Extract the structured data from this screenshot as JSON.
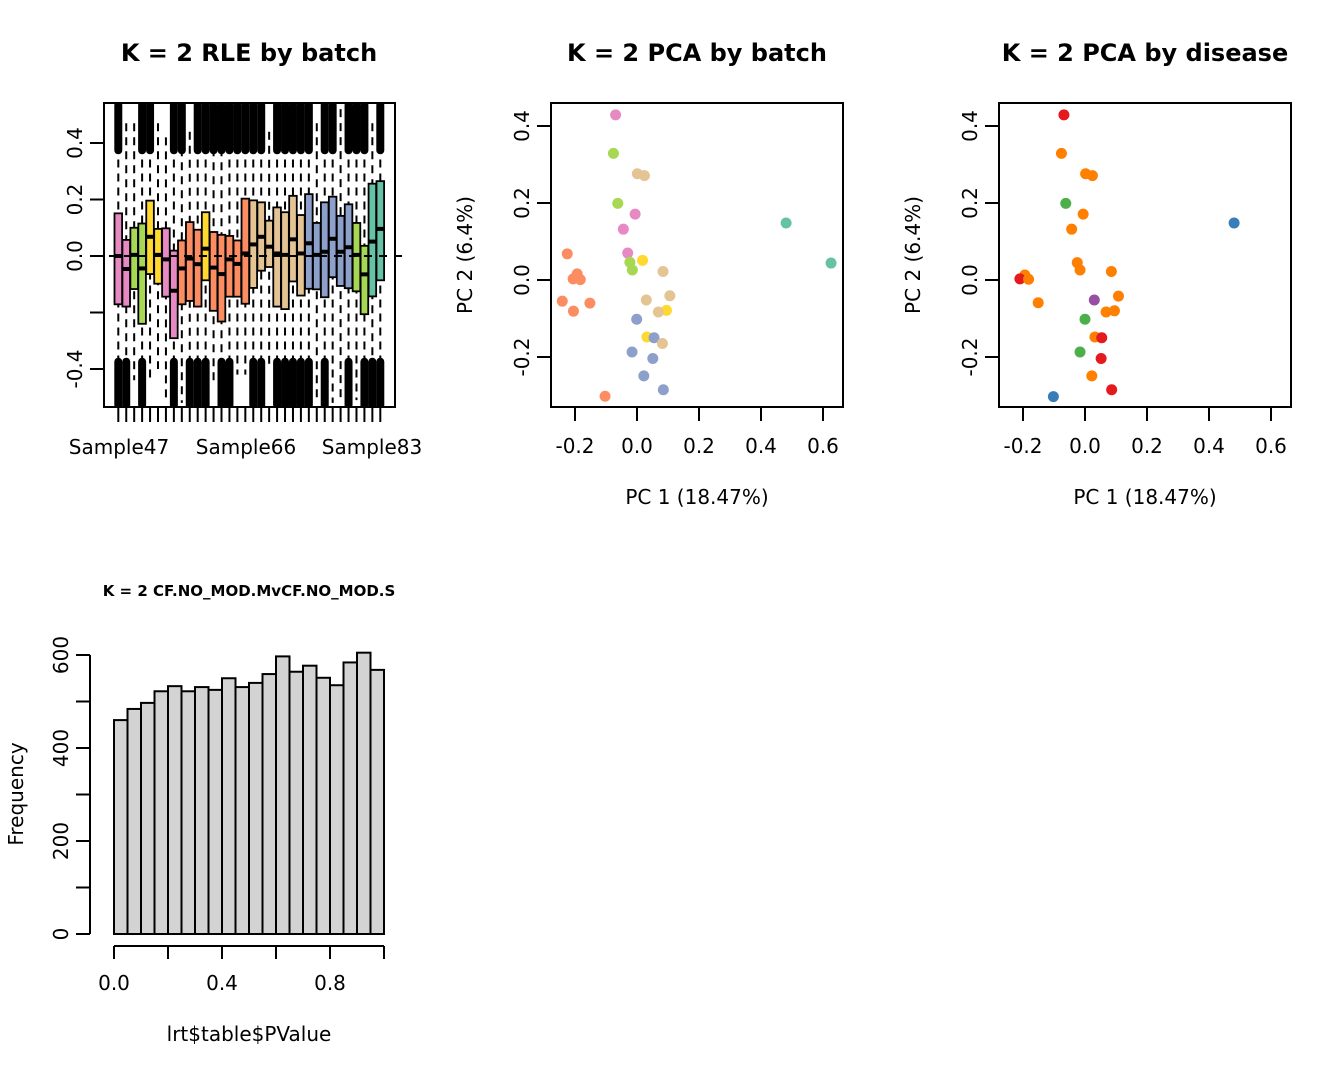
{
  "chart_data": [
    {
      "id": "rle",
      "type": "box",
      "title": "K = 2 RLE by batch",
      "xlabel": "",
      "ylabel": "",
      "ylim": [
        -0.54,
        0.54
      ],
      "yticks": [
        -0.4,
        -0.2,
        0.0,
        0.2,
        0.4
      ],
      "ytick_labels": [
        "-0.4",
        "",
        "0.0",
        "0.2",
        "0.4"
      ],
      "xtick_labels": [
        {
          "index": 1,
          "label": "Sample47"
        },
        {
          "index": 12,
          "label": "Sample66"
        },
        {
          "index": 23,
          "label": "Sample83"
        }
      ],
      "reference_line": 0.0,
      "batch_colors": {
        "pink": "#E78AC3",
        "green": "#A6D854",
        "yellow": "#FFD92F",
        "orange": "#FC8D62",
        "tan": "#E5C494",
        "blue": "#8DA0CB",
        "teal": "#66C2A5"
      },
      "boxes": [
        {
          "batch": "pink",
          "q3": 0.151,
          "median": 0.0,
          "q1": -0.171,
          "outlier_top": 0.54,
          "outlier_bottom": -0.54
        },
        {
          "batch": "pink",
          "q3": 0.057,
          "median": -0.046,
          "q1": -0.179,
          "outlier_top": 0.47,
          "outlier_bottom": -0.53
        },
        {
          "batch": "green",
          "q3": 0.1,
          "median": 0.004,
          "q1": -0.117,
          "outlier_top": 0.47,
          "outlier_bottom": -0.44
        },
        {
          "batch": "green",
          "q3": 0.115,
          "median": -0.044,
          "q1": -0.24,
          "outlier_top": 0.54,
          "outlier_bottom": -0.54
        },
        {
          "batch": "yellow",
          "q3": 0.196,
          "median": 0.068,
          "q1": -0.064,
          "outlier_top": 0.54,
          "outlier_bottom": -0.45
        },
        {
          "batch": "yellow",
          "q3": 0.096,
          "median": 0.004,
          "q1": -0.098,
          "outlier_top": 0.47,
          "outlier_bottom": -0.4
        },
        {
          "batch": "pink",
          "q3": 0.098,
          "median": -0.012,
          "q1": -0.144,
          "outlier_top": 0.42,
          "outlier_bottom": -0.51
        },
        {
          "batch": "pink",
          "q3": 0.019,
          "median": -0.123,
          "q1": -0.291,
          "outlier_top": 0.54,
          "outlier_bottom": -0.54
        },
        {
          "batch": "orange",
          "q3": 0.055,
          "median": -0.044,
          "q1": -0.171,
          "outlier_top": 0.53,
          "outlier_bottom": -0.52
        },
        {
          "batch": "orange",
          "q3": 0.12,
          "median": -0.009,
          "q1": -0.159,
          "outlier_top": 0.44,
          "outlier_bottom": -0.54
        },
        {
          "batch": "orange",
          "q3": 0.093,
          "median": -0.029,
          "q1": -0.179,
          "outlier_top": 0.54,
          "outlier_bottom": -0.54
        },
        {
          "batch": "yellow",
          "q3": 0.155,
          "median": 0.026,
          "q1": -0.086,
          "outlier_top": 0.54,
          "outlier_bottom": -0.54
        },
        {
          "batch": "orange",
          "q3": 0.085,
          "median": -0.041,
          "q1": -0.194,
          "outlier_top": 0.53,
          "outlier_bottom": -0.44
        },
        {
          "batch": "orange",
          "q3": 0.075,
          "median": -0.064,
          "q1": -0.232,
          "outlier_top": 0.53,
          "outlier_bottom": -0.54
        },
        {
          "batch": "orange",
          "q3": 0.071,
          "median": -0.012,
          "q1": -0.144,
          "outlier_top": 0.54,
          "outlier_bottom": -0.54
        },
        {
          "batch": "orange",
          "q3": 0.055,
          "median": -0.028,
          "q1": -0.144,
          "outlier_top": 0.54,
          "outlier_bottom": -0.42
        },
        {
          "batch": "orange",
          "q3": 0.203,
          "median": 0.009,
          "q1": -0.169,
          "outlier_top": 0.54,
          "outlier_bottom": -0.42
        },
        {
          "batch": "tan",
          "q3": 0.197,
          "median": 0.041,
          "q1": -0.113,
          "outlier_top": 0.54,
          "outlier_bottom": -0.54
        },
        {
          "batch": "tan",
          "q3": 0.19,
          "median": 0.068,
          "q1": -0.052,
          "outlier_top": 0.54,
          "outlier_bottom": -0.54
        },
        {
          "batch": "tan",
          "q3": 0.125,
          "median": 0.033,
          "q1": -0.039,
          "outlier_top": 0.44,
          "outlier_bottom": -0.39
        },
        {
          "batch": "tan",
          "q3": 0.172,
          "median": 0.009,
          "q1": -0.179,
          "outlier_top": 0.54,
          "outlier_bottom": -0.54
        },
        {
          "batch": "tan",
          "q3": 0.155,
          "median": 0.004,
          "q1": -0.188,
          "outlier_top": 0.54,
          "outlier_bottom": -0.54
        },
        {
          "batch": "tan",
          "q3": 0.213,
          "median": 0.059,
          "q1": -0.09,
          "outlier_top": 0.54,
          "outlier_bottom": -0.54
        },
        {
          "batch": "tan",
          "q3": 0.145,
          "median": 0.009,
          "q1": -0.14,
          "outlier_top": 0.54,
          "outlier_bottom": -0.54
        },
        {
          "batch": "blue",
          "q3": 0.219,
          "median": 0.045,
          "q1": -0.116,
          "outlier_top": 0.54,
          "outlier_bottom": -0.54
        },
        {
          "batch": "blue",
          "q3": 0.117,
          "median": 0.004,
          "q1": -0.118,
          "outlier_top": 0.47,
          "outlier_bottom": -0.51
        },
        {
          "batch": "blue",
          "q3": 0.19,
          "median": 0.015,
          "q1": -0.146,
          "outlier_top": 0.54,
          "outlier_bottom": -0.54
        },
        {
          "batch": "blue",
          "q3": 0.21,
          "median": 0.061,
          "q1": -0.075,
          "outlier_top": 0.54,
          "outlier_bottom": -0.52
        },
        {
          "batch": "blue",
          "q3": 0.142,
          "median": 0.015,
          "q1": -0.106,
          "outlier_top": 0.52,
          "outlier_bottom": -0.51
        },
        {
          "batch": "blue",
          "q3": 0.183,
          "median": 0.031,
          "q1": -0.114,
          "outlier_top": 0.54,
          "outlier_bottom": -0.54
        },
        {
          "batch": "green",
          "q3": 0.117,
          "median": 0.004,
          "q1": -0.125,
          "outlier_top": 0.54,
          "outlier_bottom": -0.51
        },
        {
          "batch": "green",
          "q3": 0.036,
          "median": -0.065,
          "q1": -0.206,
          "outlier_top": 0.54,
          "outlier_bottom": -0.54
        },
        {
          "batch": "teal",
          "q3": 0.256,
          "median": 0.051,
          "q1": -0.143,
          "outlier_top": 0.47,
          "outlier_bottom": -0.54
        },
        {
          "batch": "teal",
          "q3": 0.265,
          "median": 0.096,
          "q1": -0.086,
          "outlier_top": 0.54,
          "outlier_bottom": -0.54
        }
      ]
    },
    {
      "id": "pca-batch",
      "type": "scatter",
      "title": "K = 2 PCA by batch",
      "xlabel": "PC 1 (18.47%)",
      "ylabel": "PC 2 (6.4%)",
      "xlim": [
        -0.277,
        0.665
      ],
      "ylim": [
        -0.33,
        0.46
      ],
      "xticks": [
        -0.2,
        0.0,
        0.2,
        0.4,
        0.6
      ],
      "xtick_labels": [
        "-0.2",
        "0.0",
        "0.2",
        "0.4",
        "0.6"
      ],
      "yticks": [
        -0.2,
        0.0,
        0.2,
        0.4
      ],
      "ytick_labels": [
        "-0.2",
        "0.0",
        "0.2",
        "0.4"
      ],
      "points": [
        {
          "x": -0.069,
          "y": 0.429,
          "color": "#E78AC3"
        },
        {
          "x": -0.076,
          "y": 0.329,
          "color": "#A6D854"
        },
        {
          "x": 0.001,
          "y": 0.276,
          "color": "#E5C494"
        },
        {
          "x": 0.024,
          "y": 0.271,
          "color": "#E5C494"
        },
        {
          "x": -0.062,
          "y": 0.199,
          "color": "#A6D854"
        },
        {
          "x": -0.006,
          "y": 0.171,
          "color": "#E78AC3"
        },
        {
          "x": -0.044,
          "y": 0.132,
          "color": "#E78AC3"
        },
        {
          "x": -0.225,
          "y": 0.068,
          "color": "#FC8D62"
        },
        {
          "x": -0.03,
          "y": 0.07,
          "color": "#E78AC3"
        },
        {
          "x": 0.018,
          "y": 0.051,
          "color": "#FFD92F"
        },
        {
          "x": -0.023,
          "y": 0.046,
          "color": "#A6D854"
        },
        {
          "x": -0.015,
          "y": 0.026,
          "color": "#A6D854"
        },
        {
          "x": 0.084,
          "y": 0.022,
          "color": "#E5C494"
        },
        {
          "x": -0.193,
          "y": 0.016,
          "color": "#FC8D62"
        },
        {
          "x": -0.206,
          "y": 0.003,
          "color": "#FC8D62"
        },
        {
          "x": -0.183,
          "y": 0.001,
          "color": "#FC8D62"
        },
        {
          "x": 0.106,
          "y": -0.041,
          "color": "#E5C494"
        },
        {
          "x": -0.241,
          "y": -0.055,
          "color": "#FC8D62"
        },
        {
          "x": -0.152,
          "y": -0.06,
          "color": "#FC8D62"
        },
        {
          "x": 0.03,
          "y": -0.052,
          "color": "#E5C494"
        },
        {
          "x": -0.205,
          "y": -0.081,
          "color": "#FC8D62"
        },
        {
          "x": 0.095,
          "y": -0.079,
          "color": "#FFD92F"
        },
        {
          "x": 0.069,
          "y": -0.083,
          "color": "#E5C494"
        },
        {
          "x": -0.001,
          "y": -0.102,
          "color": "#8DA0CB"
        },
        {
          "x": 0.032,
          "y": -0.148,
          "color": "#FFD92F"
        },
        {
          "x": 0.055,
          "y": -0.15,
          "color": "#8DA0CB"
        },
        {
          "x": 0.082,
          "y": -0.165,
          "color": "#E5C494"
        },
        {
          "x": -0.016,
          "y": -0.187,
          "color": "#8DA0CB"
        },
        {
          "x": 0.051,
          "y": -0.204,
          "color": "#8DA0CB"
        },
        {
          "x": 0.022,
          "y": -0.249,
          "color": "#8DA0CB"
        },
        {
          "x": 0.085,
          "y": -0.285,
          "color": "#8DA0CB"
        },
        {
          "x": -0.103,
          "y": -0.302,
          "color": "#FC8D62"
        },
        {
          "x": 0.481,
          "y": 0.148,
          "color": "#66C2A5"
        },
        {
          "x": 0.626,
          "y": 0.044,
          "color": "#66C2A5"
        }
      ]
    },
    {
      "id": "pca-disease",
      "type": "scatter",
      "title": "K = 2 PCA by disease",
      "xlabel": "PC 1 (18.47%)",
      "ylabel": "PC 2 (6.4%)",
      "xlim": [
        -0.277,
        0.665
      ],
      "ylim": [
        -0.33,
        0.46
      ],
      "xticks": [
        -0.2,
        0.0,
        0.2,
        0.4,
        0.6
      ],
      "xtick_labels": [
        "-0.2",
        "0.0",
        "0.2",
        "0.4",
        "0.6"
      ],
      "yticks": [
        -0.2,
        0.0,
        0.2,
        0.4
      ],
      "ytick_labels": [
        "-0.2",
        "0.0",
        "0.2",
        "0.4"
      ],
      "points": [
        {
          "x": -0.068,
          "y": 0.429,
          "color": "#E41A1C"
        },
        {
          "x": -0.076,
          "y": 0.329,
          "color": "#FF7F00"
        },
        {
          "x": 0.002,
          "y": 0.276,
          "color": "#FF7F00"
        },
        {
          "x": 0.024,
          "y": 0.271,
          "color": "#FF7F00"
        },
        {
          "x": -0.062,
          "y": 0.199,
          "color": "#4DAF4A"
        },
        {
          "x": -0.006,
          "y": 0.171,
          "color": "#FF7F00"
        },
        {
          "x": -0.043,
          "y": 0.132,
          "color": "#FF7F00"
        },
        {
          "x": -0.025,
          "y": 0.045,
          "color": "#FF7F00"
        },
        {
          "x": -0.016,
          "y": 0.026,
          "color": "#FF7F00"
        },
        {
          "x": 0.085,
          "y": 0.022,
          "color": "#FF7F00"
        },
        {
          "x": -0.194,
          "y": 0.013,
          "color": "#FF7F00"
        },
        {
          "x": -0.21,
          "y": 0.003,
          "color": "#E41A1C"
        },
        {
          "x": -0.182,
          "y": 0.002,
          "color": "#FF7F00"
        },
        {
          "x": 0.108,
          "y": -0.042,
          "color": "#FF7F00"
        },
        {
          "x": 0.03,
          "y": -0.052,
          "color": "#984EA3"
        },
        {
          "x": -0.151,
          "y": -0.059,
          "color": "#FF7F00"
        },
        {
          "x": 0.068,
          "y": -0.083,
          "color": "#FF7F00"
        },
        {
          "x": 0.095,
          "y": -0.08,
          "color": "#FF7F00"
        },
        {
          "x": 0.0,
          "y": -0.102,
          "color": "#4DAF4A"
        },
        {
          "x": 0.032,
          "y": -0.148,
          "color": "#FF7F00"
        },
        {
          "x": 0.054,
          "y": -0.15,
          "color": "#E41A1C"
        },
        {
          "x": -0.016,
          "y": -0.187,
          "color": "#4DAF4A"
        },
        {
          "x": 0.052,
          "y": -0.204,
          "color": "#E41A1C"
        },
        {
          "x": 0.022,
          "y": -0.249,
          "color": "#FF7F00"
        },
        {
          "x": 0.086,
          "y": -0.285,
          "color": "#E41A1C"
        },
        {
          "x": -0.102,
          "y": -0.303,
          "color": "#377EB8"
        },
        {
          "x": 0.481,
          "y": 0.148,
          "color": "#377EB8"
        }
      ]
    },
    {
      "id": "pvalue-hist",
      "type": "bar",
      "title": "K = 2 CF.NO_MOD.MvCF.NO_MOD.S",
      "xlabel": "lrt$table$PValue",
      "ylabel": "Frequency",
      "xlim": [
        0,
        1
      ],
      "ylim": [
        0,
        600
      ],
      "xticks": [
        0.0,
        0.2,
        0.4,
        0.6,
        0.8,
        1.0
      ],
      "xtick_labels": [
        "0.0",
        "",
        "0.4",
        "",
        "0.8",
        ""
      ],
      "yticks": [
        0,
        100,
        200,
        300,
        400,
        500,
        600
      ],
      "ytick_labels": [
        "0",
        "",
        "200",
        "",
        "400",
        "",
        "600"
      ],
      "bin_width": 0.05,
      "bar_fill": "#D3D3D3",
      "values": [
        460,
        484,
        497,
        522,
        533,
        522,
        531,
        525,
        550,
        531,
        540,
        559,
        597,
        564,
        577,
        551,
        535,
        584,
        605,
        568
      ]
    }
  ]
}
